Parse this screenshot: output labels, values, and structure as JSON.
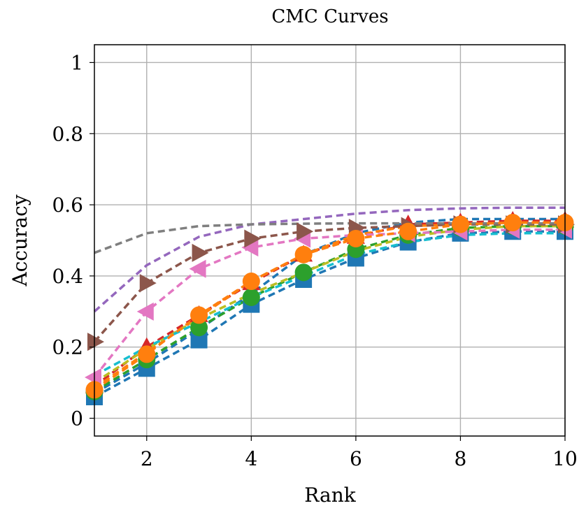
{
  "chart_data": {
    "type": "line",
    "title": "CMC Curves",
    "xlabel": "Rank",
    "ylabel": "Accuracy",
    "xlim": [
      1,
      10
    ],
    "ylim": [
      -0.05,
      1.05
    ],
    "xticks": [
      2,
      4,
      6,
      8,
      10
    ],
    "yticks": [
      0,
      0.2,
      0.4,
      0.6,
      0.8,
      1
    ],
    "ytick_labels": [
      "0",
      "0.2",
      "0.4",
      "0.6",
      "0.8",
      "1"
    ],
    "grid": true,
    "x": [
      1,
      2,
      3,
      4,
      5,
      6,
      7,
      8,
      9,
      10
    ],
    "series": [
      {
        "color": "#1f77b4",
        "marker": "square",
        "values": [
          0.06,
          0.14,
          0.22,
          0.32,
          0.39,
          0.45,
          0.495,
          0.52,
          0.525,
          0.525
        ]
      },
      {
        "color": "#1f77b4",
        "marker": "none",
        "values": [
          0.07,
          0.155,
          0.25,
          0.35,
          0.46,
          0.52,
          0.55,
          0.56,
          0.56,
          0.56
        ]
      },
      {
        "color": "#d62728",
        "marker": "triangle-up",
        "values": [
          0.09,
          0.2,
          0.29,
          0.38,
          0.46,
          0.51,
          0.545,
          0.55,
          0.555,
          0.555
        ]
      },
      {
        "color": "#ff7f0e",
        "marker": "none",
        "values": [
          0.085,
          0.185,
          0.285,
          0.385,
          0.46,
          0.515,
          0.54,
          0.545,
          0.55,
          0.55
        ]
      },
      {
        "color": "#2ca02c",
        "marker": "circle",
        "values": [
          0.075,
          0.165,
          0.255,
          0.34,
          0.41,
          0.475,
          0.515,
          0.535,
          0.54,
          0.54
        ]
      },
      {
        "color": "#bcbd22",
        "marker": "none",
        "values": [
          0.1,
          0.195,
          0.28,
          0.35,
          0.41,
          0.47,
          0.51,
          0.53,
          0.54,
          0.54
        ]
      },
      {
        "color": "#17becf",
        "marker": "none",
        "values": [
          0.12,
          0.2,
          0.27,
          0.34,
          0.4,
          0.46,
          0.495,
          0.515,
          0.52,
          0.52
        ]
      },
      {
        "color": "#e377c2",
        "marker": "triangle-left",
        "values": [
          0.115,
          0.3,
          0.42,
          0.48,
          0.505,
          0.515,
          0.52,
          0.525,
          0.53,
          0.53
        ]
      },
      {
        "color": "#8c564b",
        "marker": "triangle-right",
        "values": [
          0.215,
          0.38,
          0.465,
          0.505,
          0.525,
          0.535,
          0.54,
          0.545,
          0.545,
          0.545
        ]
      },
      {
        "color": "#9467bd",
        "marker": "none",
        "values": [
          0.3,
          0.43,
          0.51,
          0.545,
          0.56,
          0.575,
          0.585,
          0.59,
          0.592,
          0.592
        ]
      },
      {
        "color": "#7f7f7f",
        "marker": "none",
        "values": [
          0.465,
          0.52,
          0.54,
          0.545,
          0.547,
          0.548,
          0.548,
          0.548,
          0.548,
          0.548
        ]
      },
      {
        "color": "#ff7f0e",
        "marker": "circle",
        "values": [
          0.08,
          0.18,
          0.29,
          0.385,
          0.46,
          0.505,
          0.525,
          0.545,
          0.55,
          0.55
        ]
      }
    ]
  }
}
